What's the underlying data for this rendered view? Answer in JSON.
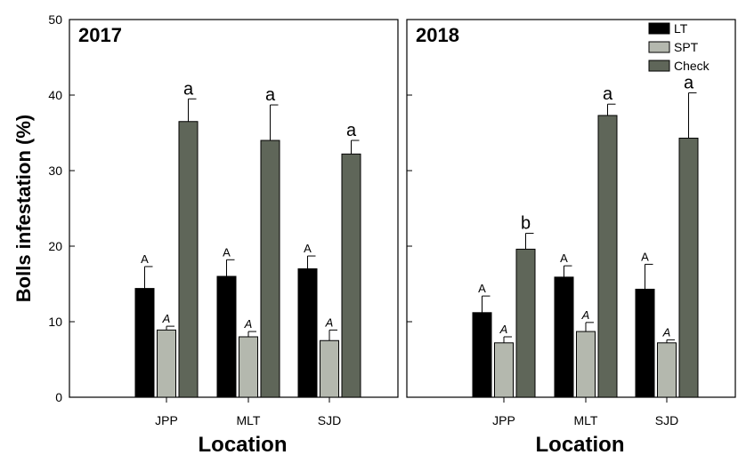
{
  "chart_data": {
    "type": "bar",
    "ylabel": "Bolls infestation (%)",
    "xlabel": "Location",
    "ylim": [
      0,
      50
    ],
    "yticks": [
      0,
      10,
      20,
      30,
      40,
      50
    ],
    "legend": {
      "placement": "top-right",
      "entries": [
        "LT",
        "SPT",
        "Check"
      ]
    },
    "colors": {
      "LT": "#000000",
      "SPT": "#b4b8ae",
      "Check": "#5f6659"
    },
    "panels": [
      {
        "title": "2017",
        "categories": [
          "JPP",
          "MLT",
          "SJD"
        ],
        "series": [
          {
            "name": "LT",
            "values": [
              14.4,
              16.0,
              17.0
            ],
            "errors": [
              2.9,
              2.2,
              1.7
            ],
            "labels": [
              "A",
              "A",
              "A"
            ]
          },
          {
            "name": "SPT",
            "values": [
              8.9,
              8.0,
              7.5
            ],
            "errors": [
              0.5,
              0.7,
              1.4
            ],
            "labels": [
              "A",
              "A",
              "A"
            ]
          },
          {
            "name": "Check",
            "values": [
              36.5,
              34.0,
              32.2
            ],
            "errors": [
              3.0,
              4.7,
              1.8
            ],
            "labels": [
              "a",
              "a",
              "a"
            ]
          }
        ]
      },
      {
        "title": "2018",
        "categories": [
          "JPP",
          "MLT",
          "SJD"
        ],
        "series": [
          {
            "name": "LT",
            "values": [
              11.2,
              15.9,
              14.3
            ],
            "errors": [
              2.2,
              1.5,
              3.3
            ],
            "labels": [
              "A",
              "A",
              "A"
            ]
          },
          {
            "name": "SPT",
            "values": [
              7.2,
              8.7,
              7.2
            ],
            "errors": [
              0.8,
              1.2,
              0.4
            ],
            "labels": [
              "A",
              "A",
              "A"
            ]
          },
          {
            "name": "Check",
            "values": [
              19.6,
              37.3,
              34.3
            ],
            "errors": [
              2.1,
              1.5,
              6.0
            ],
            "labels": [
              "b",
              "a",
              "a"
            ]
          }
        ]
      }
    ]
  }
}
